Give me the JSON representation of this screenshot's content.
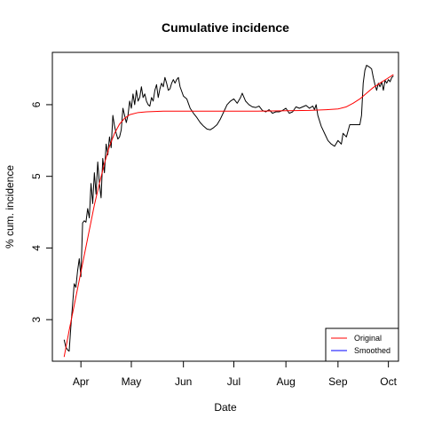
{
  "chart_data": {
    "type": "line",
    "title": "Cumulative incidence",
    "xlabel": "Date",
    "ylabel": "% cum. incidence",
    "x_axis_type": "date",
    "xlim": [
      "2020-03-15",
      "2020-10-07"
    ],
    "ylim": [
      2.42,
      6.73
    ],
    "x_ticks": [
      {
        "date": "2020-04-01",
        "label": "Apr"
      },
      {
        "date": "2020-05-01",
        "label": "May"
      },
      {
        "date": "2020-06-01",
        "label": "Jun"
      },
      {
        "date": "2020-07-01",
        "label": "Jul"
      },
      {
        "date": "2020-08-01",
        "label": "Aug"
      },
      {
        "date": "2020-09-01",
        "label": "Sep"
      },
      {
        "date": "2020-10-01",
        "label": "Oct"
      }
    ],
    "y_ticks": [
      3,
      4,
      5,
      6
    ],
    "grid": false,
    "legend": {
      "position": "bottom-right",
      "entries": [
        {
          "label": "Original",
          "color": "#ff0000"
        },
        {
          "label": "Smoothed",
          "color": "#0000ff"
        }
      ]
    },
    "series": [
      {
        "color": "#000000",
        "points": [
          [
            "2020-03-22",
            2.72
          ],
          [
            "2020-03-23",
            2.62
          ],
          [
            "2020-03-24",
            2.58
          ],
          [
            "2020-03-25",
            2.56
          ],
          [
            "2020-03-26",
            2.9
          ],
          [
            "2020-03-27",
            3.2
          ],
          [
            "2020-03-28",
            3.5
          ],
          [
            "2020-03-29",
            3.45
          ],
          [
            "2020-03-30",
            3.68
          ],
          [
            "2020-03-31",
            3.85
          ],
          [
            "2020-04-01",
            3.6
          ],
          [
            "2020-04-02",
            4.35
          ],
          [
            "2020-04-03",
            4.38
          ],
          [
            "2020-04-04",
            4.36
          ],
          [
            "2020-04-05",
            4.55
          ],
          [
            "2020-04-06",
            4.42
          ],
          [
            "2020-04-07",
            4.9
          ],
          [
            "2020-04-08",
            4.62
          ],
          [
            "2020-04-09",
            5.05
          ],
          [
            "2020-04-10",
            4.75
          ],
          [
            "2020-04-11",
            5.2
          ],
          [
            "2020-04-12",
            4.9
          ],
          [
            "2020-04-13",
            4.7
          ],
          [
            "2020-04-14",
            5.25
          ],
          [
            "2020-04-15",
            5.05
          ],
          [
            "2020-04-16",
            5.45
          ],
          [
            "2020-04-17",
            5.3
          ],
          [
            "2020-04-18",
            5.55
          ],
          [
            "2020-04-19",
            5.4
          ],
          [
            "2020-04-20",
            5.85
          ],
          [
            "2020-04-21",
            5.7
          ],
          [
            "2020-04-22",
            5.6
          ],
          [
            "2020-04-23",
            5.52
          ],
          [
            "2020-04-24",
            5.55
          ],
          [
            "2020-04-25",
            5.65
          ],
          [
            "2020-04-26",
            5.95
          ],
          [
            "2020-04-27",
            5.85
          ],
          [
            "2020-04-28",
            5.75
          ],
          [
            "2020-04-29",
            5.85
          ],
          [
            "2020-04-30",
            6.05
          ],
          [
            "2020-05-01",
            5.95
          ],
          [
            "2020-05-02",
            6.15
          ],
          [
            "2020-05-03",
            6.0
          ],
          [
            "2020-05-04",
            6.2
          ],
          [
            "2020-05-05",
            6.05
          ],
          [
            "2020-05-06",
            6.1
          ],
          [
            "2020-05-07",
            6.25
          ],
          [
            "2020-05-08",
            6.1
          ],
          [
            "2020-05-09",
            6.15
          ],
          [
            "2020-05-10",
            6.05
          ],
          [
            "2020-05-11",
            6.0
          ],
          [
            "2020-05-12",
            5.98
          ],
          [
            "2020-05-13",
            6.1
          ],
          [
            "2020-05-14",
            6.05
          ],
          [
            "2020-05-15",
            6.2
          ],
          [
            "2020-05-16",
            6.28
          ],
          [
            "2020-05-17",
            6.1
          ],
          [
            "2020-05-18",
            6.22
          ],
          [
            "2020-05-19",
            6.3
          ],
          [
            "2020-05-20",
            6.25
          ],
          [
            "2020-05-21",
            6.38
          ],
          [
            "2020-05-22",
            6.3
          ],
          [
            "2020-05-23",
            6.2
          ],
          [
            "2020-05-24",
            6.22
          ],
          [
            "2020-05-25",
            6.3
          ],
          [
            "2020-05-26",
            6.35
          ],
          [
            "2020-05-27",
            6.3
          ],
          [
            "2020-05-28",
            6.35
          ],
          [
            "2020-05-29",
            6.38
          ],
          [
            "2020-05-30",
            6.25
          ],
          [
            "2020-06-01",
            6.12
          ],
          [
            "2020-06-03",
            6.08
          ],
          [
            "2020-06-05",
            5.95
          ],
          [
            "2020-06-07",
            5.88
          ],
          [
            "2020-06-09",
            5.82
          ],
          [
            "2020-06-11",
            5.75
          ],
          [
            "2020-06-13",
            5.7
          ],
          [
            "2020-06-15",
            5.66
          ],
          [
            "2020-06-17",
            5.65
          ],
          [
            "2020-06-19",
            5.68
          ],
          [
            "2020-06-21",
            5.72
          ],
          [
            "2020-06-23",
            5.8
          ],
          [
            "2020-06-25",
            5.9
          ],
          [
            "2020-06-27",
            6.0
          ],
          [
            "2020-06-29",
            6.05
          ],
          [
            "2020-07-01",
            6.08
          ],
          [
            "2020-07-03",
            6.02
          ],
          [
            "2020-07-05",
            6.1
          ],
          [
            "2020-07-06",
            6.16
          ],
          [
            "2020-07-08",
            6.05
          ],
          [
            "2020-07-10",
            6.0
          ],
          [
            "2020-07-12",
            5.97
          ],
          [
            "2020-07-14",
            5.96
          ],
          [
            "2020-07-16",
            5.98
          ],
          [
            "2020-07-18",
            5.92
          ],
          [
            "2020-07-20",
            5.9
          ],
          [
            "2020-07-22",
            5.93
          ],
          [
            "2020-07-24",
            5.88
          ],
          [
            "2020-07-26",
            5.9
          ],
          [
            "2020-07-28",
            5.9
          ],
          [
            "2020-07-30",
            5.92
          ],
          [
            "2020-08-01",
            5.95
          ],
          [
            "2020-08-03",
            5.88
          ],
          [
            "2020-08-05",
            5.9
          ],
          [
            "2020-08-07",
            5.97
          ],
          [
            "2020-08-09",
            5.95
          ],
          [
            "2020-08-11",
            5.97
          ],
          [
            "2020-08-13",
            5.99
          ],
          [
            "2020-08-15",
            5.95
          ],
          [
            "2020-08-17",
            5.98
          ],
          [
            "2020-08-18",
            5.93
          ],
          [
            "2020-08-19",
            6.0
          ],
          [
            "2020-08-20",
            5.85
          ],
          [
            "2020-08-22",
            5.7
          ],
          [
            "2020-08-24",
            5.6
          ],
          [
            "2020-08-26",
            5.5
          ],
          [
            "2020-08-28",
            5.45
          ],
          [
            "2020-08-30",
            5.42
          ],
          [
            "2020-09-01",
            5.5
          ],
          [
            "2020-09-03",
            5.45
          ],
          [
            "2020-09-04",
            5.6
          ],
          [
            "2020-09-06",
            5.55
          ],
          [
            "2020-09-08",
            5.72
          ],
          [
            "2020-09-10",
            5.72
          ],
          [
            "2020-09-12",
            5.72
          ],
          [
            "2020-09-14",
            5.72
          ],
          [
            "2020-09-15",
            5.85
          ],
          [
            "2020-09-16",
            6.3
          ],
          [
            "2020-09-17",
            6.48
          ],
          [
            "2020-09-18",
            6.55
          ],
          [
            "2020-09-20",
            6.52
          ],
          [
            "2020-09-21",
            6.5
          ],
          [
            "2020-09-22",
            6.38
          ],
          [
            "2020-09-23",
            6.28
          ],
          [
            "2020-09-24",
            6.2
          ],
          [
            "2020-09-25",
            6.3
          ],
          [
            "2020-09-26",
            6.25
          ],
          [
            "2020-09-27",
            6.32
          ],
          [
            "2020-09-28",
            6.2
          ],
          [
            "2020-09-29",
            6.34
          ],
          [
            "2020-09-30",
            6.3
          ],
          [
            "2020-10-01",
            6.35
          ],
          [
            "2020-10-02",
            6.32
          ],
          [
            "2020-10-03",
            6.38
          ],
          [
            "2020-10-04",
            6.4
          ]
        ]
      },
      {
        "color": "#ff0000",
        "points": [
          [
            "2020-03-22",
            2.48
          ],
          [
            "2020-03-25",
            2.85
          ],
          [
            "2020-03-28",
            3.2
          ],
          [
            "2020-03-31",
            3.55
          ],
          [
            "2020-04-03",
            3.9
          ],
          [
            "2020-04-06",
            4.25
          ],
          [
            "2020-04-09",
            4.6
          ],
          [
            "2020-04-12",
            4.9
          ],
          [
            "2020-04-15",
            5.18
          ],
          [
            "2020-04-18",
            5.42
          ],
          [
            "2020-04-21",
            5.6
          ],
          [
            "2020-04-24",
            5.73
          ],
          [
            "2020-04-27",
            5.81
          ],
          [
            "2020-04-30",
            5.86
          ],
          [
            "2020-05-05",
            5.89
          ],
          [
            "2020-05-10",
            5.9
          ],
          [
            "2020-05-20",
            5.91
          ],
          [
            "2020-06-15",
            5.91
          ],
          [
            "2020-07-15",
            5.91
          ],
          [
            "2020-08-15",
            5.92
          ],
          [
            "2020-08-25",
            5.93
          ],
          [
            "2020-09-01",
            5.94
          ],
          [
            "2020-09-06",
            5.97
          ],
          [
            "2020-09-10",
            6.02
          ],
          [
            "2020-09-14",
            6.08
          ],
          [
            "2020-09-18",
            6.16
          ],
          [
            "2020-09-22",
            6.24
          ],
          [
            "2020-09-26",
            6.3
          ],
          [
            "2020-09-30",
            6.36
          ],
          [
            "2020-10-04",
            6.42
          ]
        ]
      }
    ]
  }
}
